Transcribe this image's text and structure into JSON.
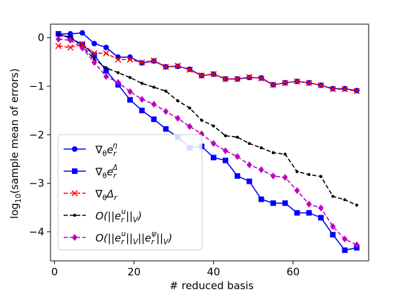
{
  "chart_data": {
    "type": "line",
    "xlabel": "# reduced basis",
    "ylabel_prefix": "log",
    "ylabel_sub": "10",
    "ylabel_rest": "(sample mean of errors)",
    "xlim": [
      -1,
      79
    ],
    "ylim": [
      -4.6,
      0.28
    ],
    "x_ticks": [
      0,
      20,
      40,
      60
    ],
    "y_ticks": [
      0,
      -1,
      -2,
      -3,
      -4
    ],
    "x_tick_labels": [
      "0",
      "20",
      "40",
      "60"
    ],
    "y_tick_labels": [
      "0",
      "−1",
      "−2",
      "−3",
      "−4"
    ],
    "grid": false,
    "legend_position": "lower-left",
    "series": [
      {
        "key": "s1",
        "color": "#0000ff",
        "dash": "solid",
        "marker": "circle",
        "x": [
          1,
          4,
          7,
          10,
          13,
          16,
          19,
          22,
          25,
          28,
          31,
          34,
          37,
          40,
          43,
          46,
          49,
          52,
          55,
          58,
          61,
          64,
          67,
          70,
          73,
          76
        ],
        "y": [
          0.08,
          0.08,
          0.1,
          -0.12,
          -0.2,
          -0.4,
          -0.4,
          -0.52,
          -0.48,
          -0.6,
          -0.59,
          -0.65,
          -0.78,
          -0.75,
          -0.85,
          -0.85,
          -0.82,
          -0.83,
          -0.97,
          -0.93,
          -0.9,
          -0.93,
          -0.98,
          -1.05,
          -1.05,
          -1.09
        ]
      },
      {
        "key": "s2",
        "color": "#0000ff",
        "dash": "solid",
        "marker": "square",
        "x": [
          1,
          4,
          7,
          10,
          13,
          16,
          19,
          22,
          25,
          28,
          31,
          34,
          37,
          40,
          43,
          46,
          49,
          52,
          55,
          58,
          61,
          64,
          67,
          70,
          73,
          76
        ],
        "y": [
          0.08,
          -0.01,
          -0.14,
          -0.36,
          -0.68,
          -0.97,
          -1.28,
          -1.5,
          -1.68,
          -1.88,
          -2.05,
          -2.27,
          -2.24,
          -2.47,
          -2.53,
          -2.85,
          -2.96,
          -3.33,
          -3.41,
          -3.41,
          -3.61,
          -3.61,
          -3.71,
          -4.06,
          -4.38,
          -4.33
        ]
      },
      {
        "key": "s3",
        "color": "#ff0000",
        "dash": "dashed",
        "marker": "x",
        "x": [
          1,
          4,
          7,
          10,
          13,
          16,
          19,
          22,
          25,
          28,
          31,
          34,
          37,
          40,
          43,
          46,
          49,
          52,
          55,
          58,
          61,
          64,
          67,
          70,
          73,
          76
        ],
        "y": [
          -0.17,
          -0.2,
          -0.13,
          -0.32,
          -0.32,
          -0.45,
          -0.45,
          -0.51,
          -0.47,
          -0.6,
          -0.58,
          -0.66,
          -0.78,
          -0.75,
          -0.85,
          -0.85,
          -0.81,
          -0.84,
          -0.97,
          -0.93,
          -0.9,
          -0.93,
          -0.98,
          -1.06,
          -1.06,
          -1.1
        ]
      },
      {
        "key": "s4",
        "color": "#000000",
        "dash": "dashed",
        "marker": "dot",
        "x": [
          1,
          4,
          7,
          10,
          13,
          16,
          19,
          22,
          25,
          28,
          31,
          34,
          37,
          40,
          43,
          46,
          49,
          52,
          55,
          58,
          61,
          64,
          67,
          70,
          73,
          76
        ],
        "y": [
          0.05,
          0.02,
          -0.18,
          -0.44,
          -0.62,
          -0.72,
          -0.82,
          -0.94,
          -1.02,
          -1.1,
          -1.3,
          -1.45,
          -1.7,
          -1.82,
          -2.02,
          -2.05,
          -2.18,
          -2.27,
          -2.37,
          -2.4,
          -2.76,
          -2.82,
          -2.86,
          -3.27,
          -3.34,
          -3.45
        ]
      },
      {
        "key": "s5",
        "color": "#bf00bf",
        "dash": "dashed",
        "marker": "diamond",
        "x": [
          1,
          4,
          7,
          10,
          13,
          16,
          19,
          22,
          25,
          28,
          31,
          34,
          37,
          40,
          43,
          46,
          49,
          52,
          55,
          58,
          61,
          64,
          67,
          70,
          73,
          76
        ],
        "y": [
          -0.03,
          -0.05,
          -0.21,
          -0.51,
          -0.8,
          -0.92,
          -1.11,
          -1.27,
          -1.37,
          -1.52,
          -1.66,
          -1.83,
          -1.98,
          -2.18,
          -2.33,
          -2.45,
          -2.62,
          -2.72,
          -2.85,
          -2.88,
          -3.15,
          -3.43,
          -3.51,
          -3.89,
          -4.15,
          -4.27
        ]
      }
    ],
    "legend_entries": [
      {
        "base": "∇",
        "sub1": "θ",
        "main": "e",
        "sub2": "r",
        "sup": "η"
      },
      {
        "base": "∇",
        "sub1": "θ",
        "main": "e",
        "sub2": "r",
        "sup": "Δ"
      },
      {
        "base": "∇",
        "sub1": "θ",
        "main": "Δ",
        "sub2": "r",
        "sup": ""
      },
      {
        "p1": "O(||e",
        "sub1": "r",
        "sup1": "u",
        "p2": "||",
        "sub2": "V",
        "p3": ")",
        "sub3": "",
        "sup3": "",
        "p4": "",
        "sub4": "",
        "p5": ""
      },
      {
        "p1": "O(||e",
        "sub1": "r",
        "sup1": "u",
        "p2": "||",
        "sub2": "V",
        "p3": "||e",
        "sub3": "r",
        "sup3": "ψ",
        "p4": "||",
        "sub4": "V",
        "p5": ")"
      }
    ]
  }
}
